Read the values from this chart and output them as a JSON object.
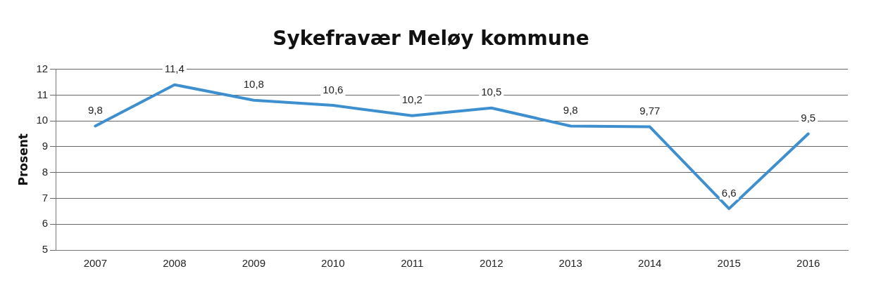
{
  "chart_data": {
    "type": "line",
    "title": "Sykefravær Meløy kommune",
    "ylabel": "Prosent",
    "categories": [
      "2007",
      "2008",
      "2009",
      "2010",
      "2011",
      "2012",
      "2013",
      "2014",
      "2015",
      "2016"
    ],
    "series": [
      {
        "color": "#3d8fcf",
        "values": [
          9.8,
          11.4,
          10.8,
          10.6,
          10.2,
          10.5,
          9.8,
          9.77,
          6.6,
          9.5
        ],
        "value_labels": [
          "9,8",
          "11,4",
          "10,8",
          "10,6",
          "10,2",
          "10,5",
          "9,8",
          "9,77",
          "6,6",
          "9,5"
        ]
      }
    ],
    "ylim": [
      5,
      12
    ],
    "yticks": [
      5,
      6,
      7,
      8,
      9,
      10,
      11,
      12
    ],
    "grid": "y",
    "legend": false,
    "marker": "none",
    "line_style": "solid"
  }
}
